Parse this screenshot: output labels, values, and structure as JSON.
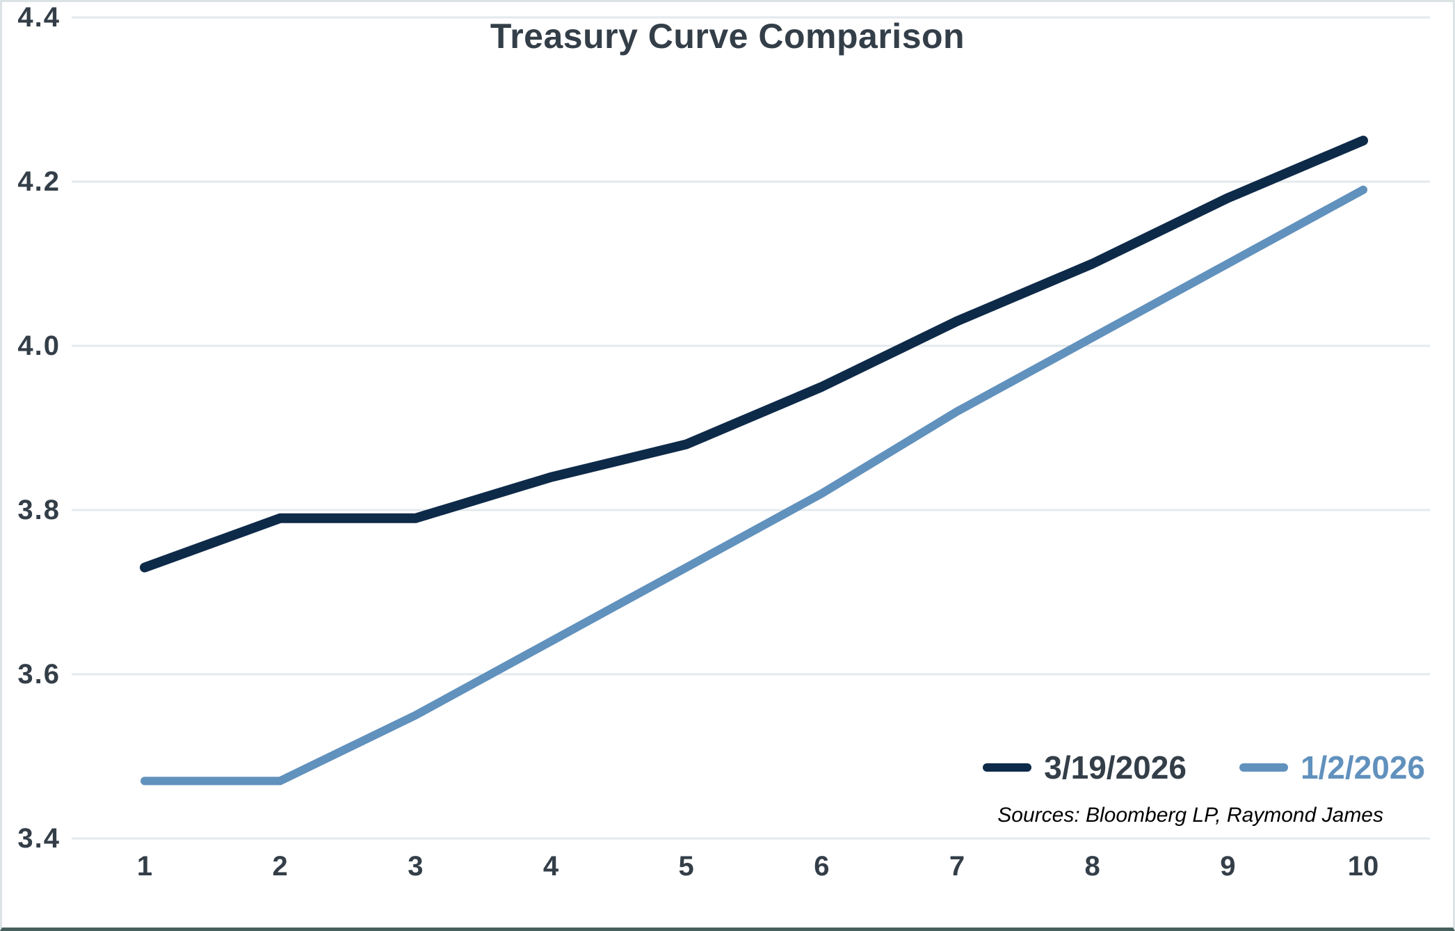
{
  "chart_data": {
    "type": "line",
    "title": "Treasury Curve Comparison",
    "x": [
      1,
      2,
      3,
      4,
      5,
      6,
      7,
      8,
      9,
      10
    ],
    "xlabel": "",
    "ylabel": "",
    "ylim": [
      3.4,
      4.4
    ],
    "yticks": [
      3.4,
      3.6,
      3.8,
      4.0,
      4.2,
      4.4
    ],
    "grid": "horizontal",
    "legend_position": "bottom-right-inside",
    "series": [
      {
        "name": "3/19/2026",
        "color": "#0e2a49",
        "values": [
          3.73,
          3.79,
          3.79,
          3.84,
          3.88,
          3.95,
          4.03,
          4.1,
          4.18,
          4.25
        ]
      },
      {
        "name": "1/2/2026",
        "color": "#6191bd",
        "values": [
          3.47,
          3.47,
          3.55,
          3.64,
          3.73,
          3.82,
          3.92,
          4.01,
          4.1,
          4.19
        ]
      }
    ],
    "source_note": "Sources: Bloomberg LP, Raymond James"
  },
  "colors": {
    "text_dark": "#333e48",
    "gridline": "#e3e9ec",
    "background": "#ffffff",
    "frame_border": "#dce3e5",
    "bottom_accent": "#47605d"
  }
}
